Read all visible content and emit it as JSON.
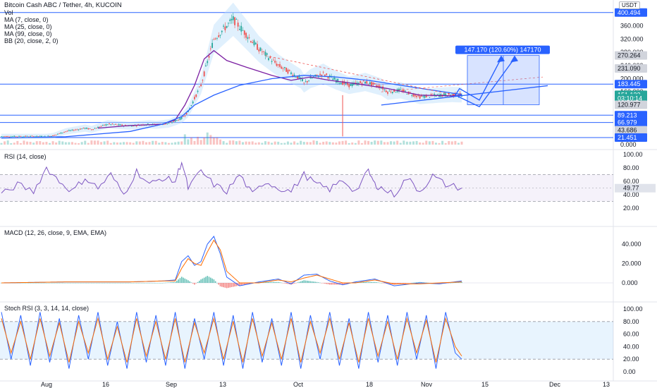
{
  "header": {
    "symbol_line": "Bitcoin Cash ABC / Tether, 4h, KUCOIN",
    "vol_label": "Vol",
    "indicators": [
      "MA (7, close, 0)",
      "MA (25, close, 0)",
      "MA (99, close, 0)",
      "BB (20, close, 2, 0)"
    ],
    "currency_badge": "USDT"
  },
  "colors": {
    "price": "#2a2e39",
    "up": "#26a69a",
    "down": "#ef5350",
    "ma7": "#7b1fa2",
    "ma25": "#e91e63",
    "ma99": "#2962ff",
    "bb": "#bbdefb",
    "hline": "#2962ff",
    "rsi": "#7e57c2",
    "macd": "#2962ff",
    "signal": "#ff6d00",
    "stoch_k": "#2962ff",
    "stoch_d": "#ff6d00",
    "projection": "#2962ff"
  },
  "chart_data": [
    {
      "type": "line",
      "pane": "price",
      "x_ticks": [
        "Aug",
        "16",
        "Sep",
        "13",
        "Oct",
        "18",
        "Nov",
        "15",
        "Dec",
        "13"
      ],
      "y_ticks": [
        "360.000",
        "320.000",
        "280.000",
        "240.000",
        "200.000",
        "160.000",
        "120.000",
        "80.000",
        "40.000",
        "0.000"
      ],
      "price_labels": [
        {
          "text": "400.494",
          "style": "line"
        },
        {
          "text": "270.264",
          "style": "gray"
        },
        {
          "text": "231.090",
          "style": "gray"
        },
        {
          "text": "183.445",
          "style": "line"
        },
        {
          "text": "151.132",
          "style": "last"
        },
        {
          "text": "03:10:14",
          "style": "last"
        },
        {
          "text": "120.977",
          "style": "gray"
        },
        {
          "text": "89.213",
          "style": "line"
        },
        {
          "text": "66.979",
          "style": "line"
        },
        {
          "text": "43.686",
          "style": "gray"
        },
        {
          "text": "21.451",
          "style": "line"
        }
      ],
      "horizontal_levels": [
        400.494,
        183.445,
        89.213,
        66.979,
        21.451
      ],
      "projection_label": "147.170 (120.60%) 147170",
      "series": [
        {
          "name": "price",
          "x": [
            0,
            14,
            16,
            20,
            26,
            28,
            33,
            40,
            46,
            48,
            52,
            56,
            58,
            62,
            66,
            72,
            80,
            86,
            93,
            94,
            96,
            100,
            104,
            108,
            113,
            118,
            120,
            124,
            130,
            136,
            140,
            143
          ],
          "y": [
            25,
            25,
            27,
            40,
            50,
            46,
            62,
            57,
            62,
            60,
            64,
            80,
            100,
            180,
            320,
            380,
            290,
            240,
            200,
            185,
            200,
            215,
            195,
            180,
            190,
            175,
            160,
            165,
            145,
            150,
            152,
            151
          ]
        },
        {
          "name": "MA (7, close, 0)",
          "x": [
            30,
            40,
            50,
            54,
            57,
            60,
            63,
            66,
            70,
            76,
            84,
            90,
            96,
            102,
            110,
            120,
            130,
            140,
            143
          ],
          "y": [
            50,
            58,
            62,
            75,
            120,
            180,
            260,
            285,
            255,
            235,
            210,
            195,
            205,
            195,
            185,
            170,
            150,
            148,
            150
          ]
        },
        {
          "name": "MA (99, close, 0)",
          "x": [
            0,
            20,
            40,
            50,
            56,
            60,
            66,
            74,
            84,
            94,
            104,
            114,
            124,
            134,
            143
          ],
          "y": [
            20,
            24,
            40,
            62,
            85,
            120,
            150,
            180,
            200,
            210,
            205,
            195,
            180,
            165,
            152
          ]
        }
      ]
    },
    {
      "type": "line",
      "pane": "rsi",
      "title": "RSI (14, close)",
      "y_ticks": [
        "100.00",
        "80.00",
        "60.00",
        "40.00",
        "20.00"
      ],
      "last_value": "49.77",
      "series": [
        {
          "name": "RSI",
          "x": [
            0,
            5,
            10,
            14,
            18,
            22,
            26,
            30,
            34,
            38,
            42,
            46,
            50,
            54,
            56,
            58,
            62,
            66,
            70,
            74,
            78,
            82,
            86,
            90,
            94,
            98,
            102,
            106,
            110,
            114,
            116,
            118,
            122,
            126,
            130,
            134,
            138,
            143
          ],
          "y": [
            40,
            55,
            45,
            80,
            60,
            45,
            65,
            50,
            70,
            40,
            75,
            55,
            65,
            60,
            90,
            50,
            75,
            55,
            45,
            70,
            40,
            60,
            50,
            45,
            70,
            55,
            48,
            62,
            45,
            75,
            55,
            50,
            40,
            65,
            45,
            68,
            55,
            50
          ]
        }
      ]
    },
    {
      "type": "line",
      "pane": "macd",
      "title": "MACD (12, 26, close, 9, EMA, EMA)",
      "y_ticks": [
        "40.000",
        "20.000",
        "0.000"
      ],
      "series": [
        {
          "name": "MACD",
          "x": [
            0,
            20,
            40,
            50,
            54,
            56,
            58,
            60,
            62,
            64,
            66,
            68,
            70,
            74,
            80,
            86,
            90,
            94,
            98,
            102,
            106,
            110,
            116,
            122,
            130,
            136,
            143
          ],
          "y": [
            0,
            1,
            1,
            2,
            3,
            22,
            28,
            18,
            22,
            40,
            48,
            30,
            6,
            -3,
            1,
            4,
            -1,
            8,
            9,
            2,
            -2,
            1,
            4,
            -3,
            0,
            -1,
            2
          ]
        },
        {
          "name": "Signal",
          "x": [
            0,
            20,
            40,
            50,
            54,
            56,
            58,
            60,
            62,
            64,
            66,
            68,
            70,
            74,
            80,
            86,
            90,
            94,
            98,
            102,
            106,
            110,
            116,
            122,
            130,
            136,
            143
          ],
          "y": [
            0,
            1,
            1,
            2,
            2,
            15,
            25,
            20,
            18,
            32,
            44,
            34,
            12,
            0,
            0,
            3,
            1,
            5,
            8,
            4,
            0,
            0,
            3,
            -1,
            -1,
            0,
            1
          ]
        }
      ]
    },
    {
      "type": "line",
      "pane": "stoch",
      "title": "Stoch RSI (3, 3, 14, 14, close)",
      "y_ticks": [
        "100.00",
        "80.00",
        "60.00",
        "40.00",
        "20.00",
        "0.00"
      ],
      "series": [
        {
          "name": "K",
          "x": [
            0,
            3,
            6,
            9,
            12,
            15,
            18,
            21,
            24,
            27,
            30,
            33,
            36,
            39,
            42,
            45,
            48,
            51,
            54,
            57,
            60,
            63,
            66,
            69,
            72,
            75,
            78,
            81,
            84,
            87,
            90,
            93,
            96,
            99,
            102,
            105,
            108,
            111,
            114,
            117,
            120,
            123,
            126,
            129,
            132,
            135,
            138,
            141,
            143
          ],
          "y": [
            95,
            20,
            90,
            10,
            95,
            15,
            85,
            5,
            90,
            20,
            95,
            10,
            80,
            5,
            95,
            15,
            90,
            10,
            95,
            5,
            85,
            20,
            95,
            10,
            90,
            5,
            95,
            15,
            85,
            10,
            95,
            5,
            90,
            20,
            95,
            10,
            85,
            5,
            95,
            15,
            90,
            10,
            95,
            20,
            90,
            5,
            95,
            30,
            20
          ]
        },
        {
          "name": "D",
          "x": [
            0,
            3,
            6,
            9,
            12,
            15,
            18,
            21,
            24,
            27,
            30,
            33,
            36,
            39,
            42,
            45,
            48,
            51,
            54,
            57,
            60,
            63,
            66,
            69,
            72,
            75,
            78,
            81,
            84,
            87,
            90,
            93,
            96,
            99,
            102,
            105,
            108,
            111,
            114,
            117,
            120,
            123,
            126,
            129,
            132,
            135,
            138,
            141,
            143
          ],
          "y": [
            85,
            30,
            80,
            20,
            85,
            25,
            78,
            15,
            80,
            30,
            85,
            20,
            72,
            15,
            85,
            25,
            80,
            20,
            85,
            15,
            78,
            30,
            85,
            20,
            80,
            15,
            85,
            25,
            78,
            20,
            85,
            15,
            80,
            30,
            85,
            20,
            78,
            15,
            85,
            25,
            80,
            20,
            85,
            30,
            82,
            15,
            85,
            40,
            25
          ]
        }
      ]
    }
  ]
}
